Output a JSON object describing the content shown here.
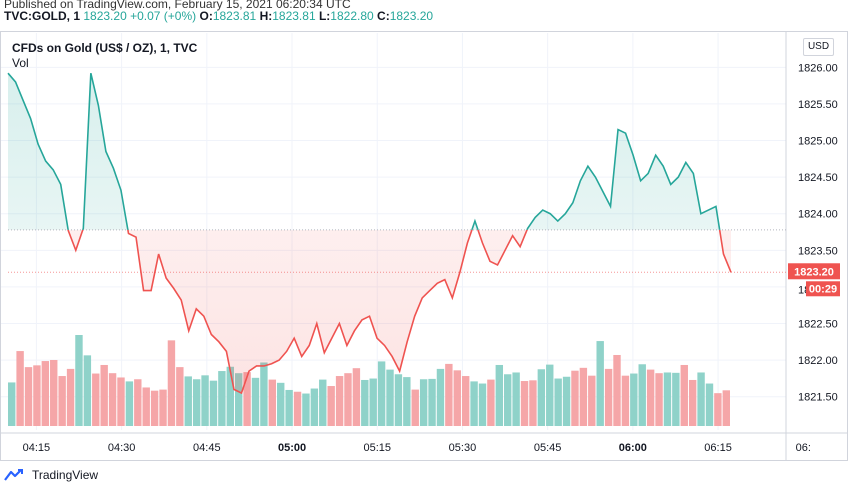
{
  "published": "Published on TradingView.com, February 15, 2021 06:20:34 UTC",
  "ticker": {
    "symbol": "TVC:GOLD, 1",
    "last": "1823.20",
    "change": "+0.07 (+0%)",
    "o_label": "O:",
    "o": "1823.81",
    "h_label": "H:",
    "h": "1823.81",
    "l_label": "L:",
    "l": "1822.80",
    "c_label": "C:",
    "c": "1823.20"
  },
  "legend": {
    "title": "CFDs on Gold (US$ / OZ), 1, TVC",
    "volume": "Vol"
  },
  "currency_button": "USD",
  "price_label": "1823.20",
  "countdown_label": "00:29",
  "obscured_tick": "18",
  "footer": {
    "brand": "TradingView"
  },
  "colors": {
    "up": "#26a69a",
    "down": "#ef5350",
    "up_vol": "#8fd2c9",
    "down_vol": "#f5a6a8",
    "grid": "#f0f3fa"
  },
  "chart_data": {
    "type": "line",
    "title": "CFDs on Gold (US$ / OZ), 1, TVC",
    "baseline": 1823.78,
    "last_price": 1823.2,
    "ylim": [
      1821.1,
      1826.1
    ],
    "y_ticks": [
      1821.5,
      1822.0,
      1822.5,
      1823.0,
      1823.5,
      1824.0,
      1824.5,
      1825.0,
      1825.5,
      1826.0
    ],
    "y_tick_labels": [
      "1821.50",
      "1822.00",
      "1822.50",
      "1823.00",
      "1823.50",
      "1824.00",
      "1824.50",
      "1825.00",
      "1825.50",
      "1826.00"
    ],
    "x_time_start": "04:10",
    "x_step_minutes": 1,
    "x_ticks": [
      "04:15",
      "04:30",
      "04:45",
      "05:00",
      "05:15",
      "05:30",
      "05:45",
      "06:00",
      "06:15",
      "06:"
    ],
    "x_tick_bold": [
      false,
      false,
      false,
      true,
      false,
      false,
      false,
      true,
      false,
      false
    ],
    "x_tick_minutes": [
      255,
      270,
      285,
      300,
      315,
      330,
      345,
      360,
      375,
      390
    ],
    "price": [
      1825.92,
      1825.48,
      1824.85,
      1824.62,
      1824.32,
      1823.73,
      1823.68,
      1822.95,
      1822.95,
      1823.45,
      1823.12,
      1822.98,
      1822.82,
      1822.4,
      1822.7,
      1822.6,
      1822.35,
      1822.25,
      1822.12,
      1821.6,
      1821.55,
      1821.85,
      1821.92,
      1821.92,
      1821.95,
      1822.0,
      1822.12,
      1822.3,
      1822.05,
      1822.2,
      1822.5,
      1822.1,
      1822.3,
      1822.5,
      1822.2,
      1822.4,
      1822.55,
      1822.6,
      1822.3,
      1822.2,
      1822.05,
      1821.85,
      1822.25,
      1822.6,
      1822.85,
      1822.95,
      1823.05,
      1823.1,
      1822.85,
      1823.2,
      1823.6,
      1823.9,
      1823.6,
      1823.35,
      1823.3,
      1823.5,
      1823.7,
      1823.55,
      1823.8,
      1823.95,
      1824.05,
      1824.0,
      1823.9,
      1824.0,
      1824.15,
      1824.45,
      1824.65,
      1824.5,
      1824.3,
      1824.1,
      1825.15,
      1825.1,
      1824.8,
      1824.45,
      1824.55,
      1824.8,
      1824.65,
      1824.4,
      1824.5,
      1824.7,
      1824.55,
      1824.0,
      1824.05,
      1824.1,
      1823.45,
      1823.2
    ],
    "price_start": [
      1825.92,
      1825.8,
      1825.55,
      1825.3,
      1824.95,
      1824.72,
      1824.6,
      1824.4,
      1823.77,
      1823.5,
      1823.8
    ],
    "volume": [
      1221,
      2100,
      1650,
      1700,
      1820,
      1850,
      1400,
      1600,
      2550,
      1980,
      1470,
      1710,
      1480,
      1360,
      1250,
      1310,
      1080,
      990,
      1020,
      2400,
      1650,
      1390,
      1310,
      1420,
      1270,
      1540,
      1660,
      1480,
      1510,
      1350,
      1780,
      1300,
      1210,
      1010,
      960,
      910,
      1050,
      1300,
      1120,
      1400,
      1480,
      1620,
      1290,
      1330,
      1810,
      1580,
      1450,
      1370,
      1020,
      1310,
      1320,
      1600,
      1740,
      1560,
      1400,
      1250,
      1190,
      1300,
      1710,
      1450,
      1500,
      1260,
      1280,
      1590,
      1720,
      1330,
      1380,
      1550,
      1630,
      1410,
      2380,
      1600,
      1990,
      1410,
      1470,
      1730,
      1580,
      1480,
      1500,
      1490,
      1710,
      1290,
      1500,
      1190,
      920,
      1000
    ],
    "volume_unit_note": ""
  }
}
